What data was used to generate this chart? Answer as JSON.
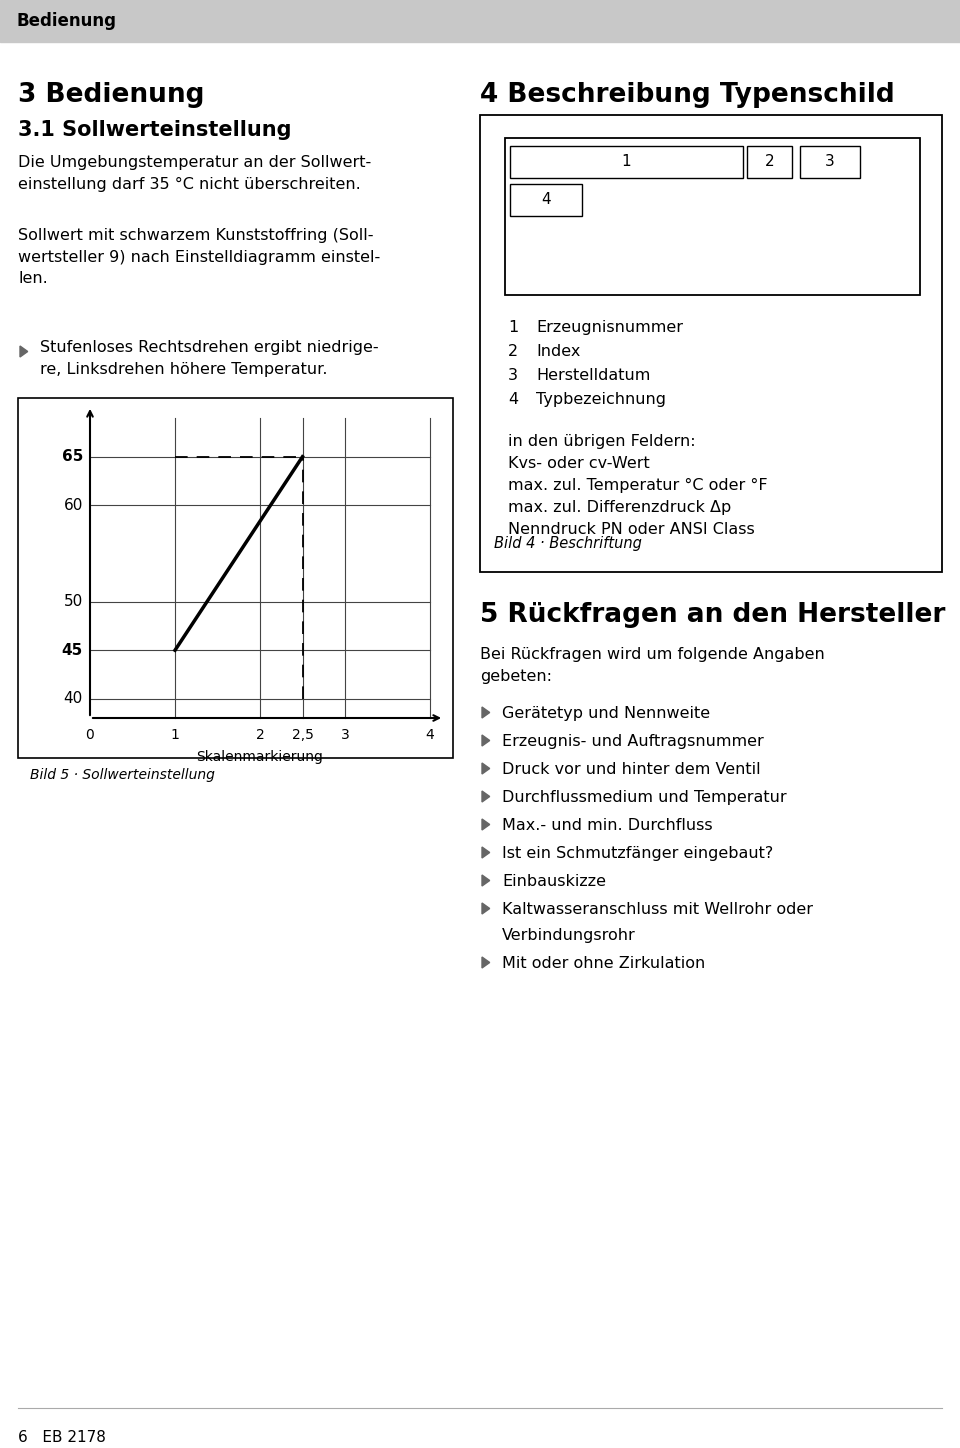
{
  "bg_color": "#ffffff",
  "header_bg": "#c8c8c8",
  "header_text": "Bedienung",
  "section3_title": "3 Bedienung",
  "section3_sub": "3.1 Sollwerteinstellung",
  "section3_p1": "Die Umgebungstemperatur an der Sollwert-\neinstellung darf 35 °C nicht überschreiten.",
  "section3_p2": "Sollwert mit schwarzem Kunststoffring (Soll-\nwertsteller 9) nach Einstelldiagramm einstel-\nlen.",
  "section3_bullet": "Stufenloses Rechtsdrehen ergibt niedrige-\nre, Linksdrehen höhere Temperatur.",
  "graph_xticks": [
    0,
    1,
    2,
    2.5,
    3,
    4
  ],
  "graph_xtick_labels": [
    "0",
    "1",
    "2",
    "2,5",
    "3",
    "4"
  ],
  "graph_xlabel": "Skalenmarkierung",
  "graph_caption": "Bild 5 · Sollwerteinstellung",
  "section4_title": "4 Beschreibung Typenschild",
  "typenschild_items_num": [
    "1",
    "2",
    "3",
    "4"
  ],
  "typenschild_items_text": [
    "Erzeugnisnummer",
    "Index",
    "Herstelldatum",
    "Typbezeichnung"
  ],
  "typenschild_extra_title": "in den übrigen Feldern:",
  "typenschild_extra_lines": [
    "Kvs- oder cv-Wert",
    "max. zul. Temperatur °C oder °F",
    "max. zul. Differenzdruck Δp",
    "Nenndruck PN oder ANSI Class"
  ],
  "typenschild_caption": "Bild 4 · Beschriftung",
  "section5_title": "5 Rückfragen an den Hersteller",
  "section5_intro": "Bei Rückfragen wird um folgende Angaben\ngebeten:",
  "section5_bullets": [
    "Gerätetyp und Nennweite",
    "Erzeugnis- und Auftragsnummer",
    "Druck vor und hinter dem Ventil",
    "Durchflussmedium und Temperatur",
    "Max.- und min. Durchfluss",
    "Ist ein Schmutzfänger eingebaut?",
    "Einbauskizze",
    "Kaltwasseranschluss mit Wellrohr oder\nVerbindungsrohr",
    "Mit oder ohne Zirkulation"
  ],
  "footer_text": "6   EB 2178"
}
